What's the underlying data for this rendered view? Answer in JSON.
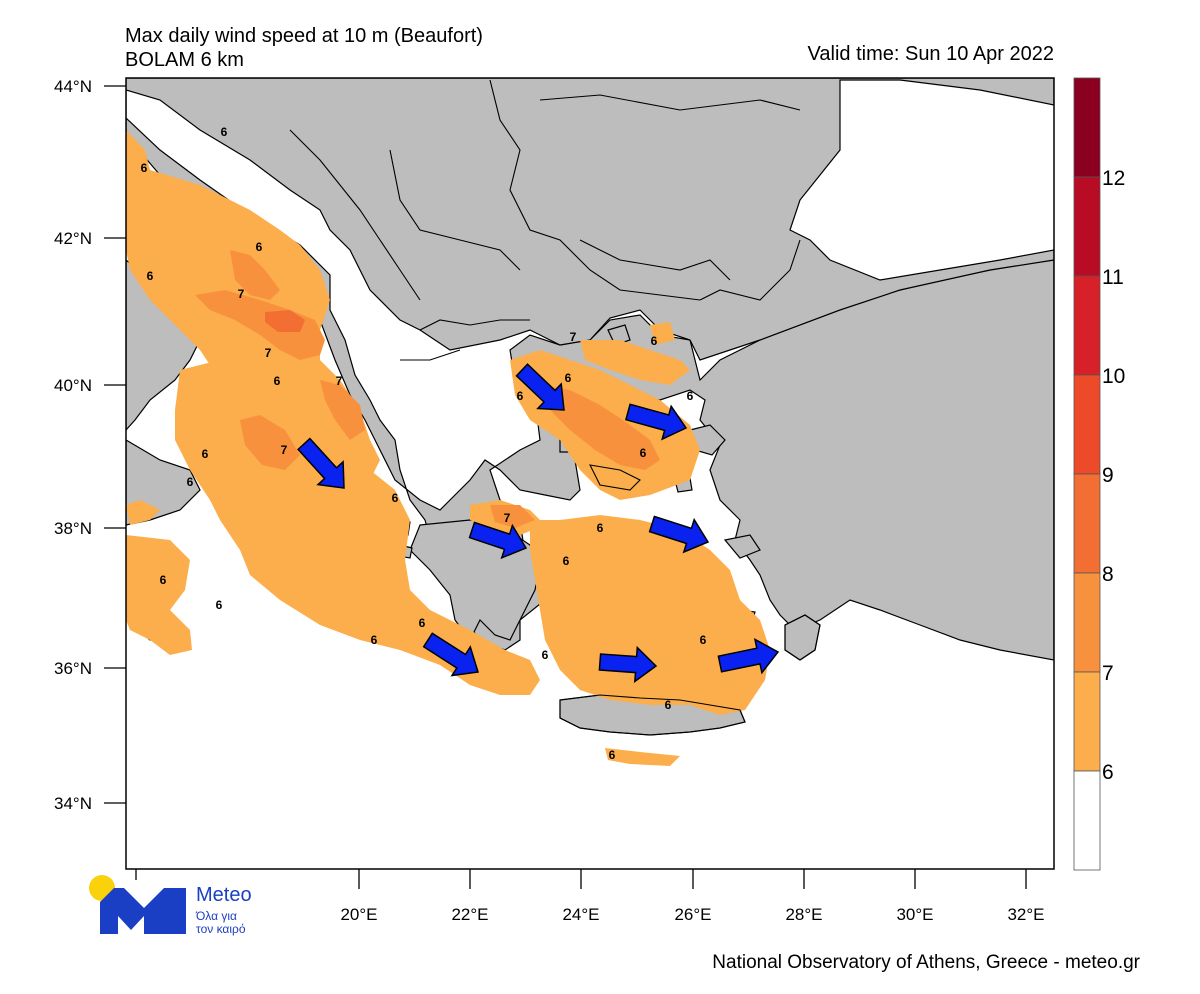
{
  "header": {
    "title": "Max daily wind speed at 10 m (Beaufort)",
    "subtitle": "BOLAM 6 km",
    "valid_time": "Valid time: Sun 10 Apr 2022"
  },
  "footer": {
    "credit": "National Observatory of Athens, Greece - meteo.gr"
  },
  "logo": {
    "name": "Meteo",
    "tagline_line1": "Όλα για",
    "tagline_line2": "τον καιρό"
  },
  "axes": {
    "lat_ticks": [
      "44°N",
      "42°N",
      "40°N",
      "38°N",
      "36°N",
      "34°N"
    ],
    "lon_ticks": [
      "20°E",
      "22°E",
      "24°E",
      "26°E",
      "28°E",
      "30°E",
      "32°E"
    ]
  },
  "colorbar": {
    "labels": [
      "12",
      "11",
      "10",
      "9",
      "8",
      "7",
      "6"
    ],
    "colors": [
      "#8b0021",
      "#b80c24",
      "#d72027",
      "#ec4a28",
      "#f26e33",
      "#f8913d",
      "#fbae4b",
      "#ffffff"
    ]
  },
  "contour_labels": [
    "6",
    "6",
    "6",
    "6",
    "7",
    "7",
    "6",
    "7",
    "7",
    "6",
    "6",
    "6",
    "6",
    "6",
    "6",
    "6",
    "6",
    "7",
    "6",
    "6",
    "6",
    "6",
    "6",
    "6",
    "6",
    "7",
    "6",
    "6",
    "6"
  ],
  "colors": {
    "land": "#bdbdbd",
    "sea": "#ffffff",
    "wind_6": "#fbae4b",
    "wind_7": "#f8913d",
    "arrow": "#0a22f0"
  }
}
